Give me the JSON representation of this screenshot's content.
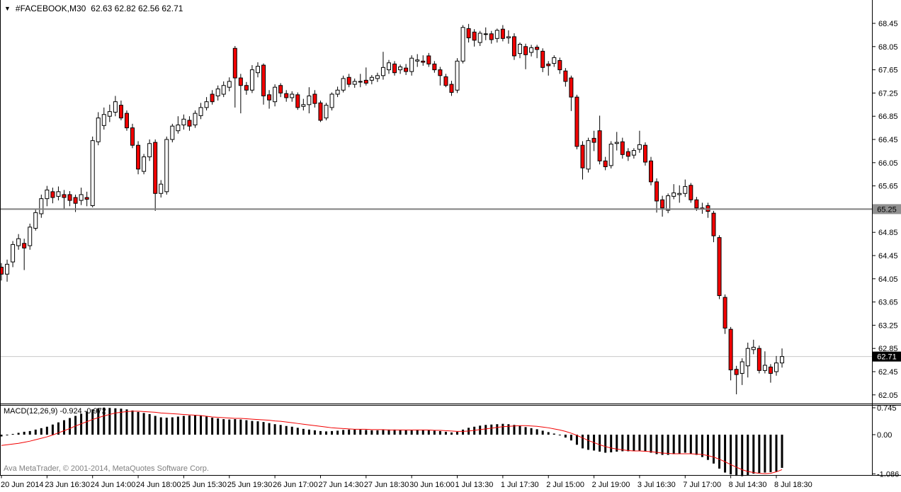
{
  "title_bar": {
    "dropdown_icon": "▼",
    "symbol": "#FACEBOOK,M30",
    "quote": "62.63 62.82 62.56 62.71"
  },
  "indicator_label": {
    "name": "MACD(12,26,9)",
    "values": "-0.924 -0.972"
  },
  "footer": {
    "copyright": "Ava MetaTrader, © 2001-2014, MetaQuotes Software Corp."
  },
  "colors": {
    "bull_fill": "#ffffff",
    "bear_fill": "#f20000",
    "outline": "#000000",
    "macd_bar": "#000000",
    "signal_line": "#f20000",
    "hline": "#808080",
    "current_price_line": "#c8c8c8",
    "hline_badge_bg": "#909090",
    "hline_badge_text": "#000000",
    "current_badge_bg": "#000000",
    "current_badge_text": "#ffffff",
    "axis_text": "#000000",
    "frame": "#000000"
  },
  "price_axis": {
    "ticks": [
      68.45,
      68.05,
      67.65,
      67.25,
      66.85,
      66.45,
      66.05,
      65.65,
      65.25,
      64.85,
      64.45,
      64.05,
      63.65,
      63.25,
      62.85,
      62.45,
      62.05
    ],
    "hline_badge": "65.25",
    "current_badge": "62.71"
  },
  "macd_axis": {
    "ticks": [
      {
        "label": "0.745",
        "value": 0.745
      },
      {
        "label": "0.00",
        "value": 0
      },
      {
        "label": "-1.086",
        "value": -1.086
      }
    ]
  },
  "time_axis": {
    "labels": [
      {
        "text": "20 Jun 2014",
        "bar": 0
      },
      {
        "text": "23 Jun 16:30",
        "bar": 8
      },
      {
        "text": "24 Jun 14:00",
        "bar": 16
      },
      {
        "text": "24 Jun 18:00",
        "bar": 24
      },
      {
        "text": "25 Jun 15:30",
        "bar": 32
      },
      {
        "text": "25 Jun 19:30",
        "bar": 40
      },
      {
        "text": "26 Jun 17:00",
        "bar": 48
      },
      {
        "text": "27 Jun 14:30",
        "bar": 56
      },
      {
        "text": "27 Jun 18:30",
        "bar": 64
      },
      {
        "text": "30 Jun 16:00",
        "bar": 72
      },
      {
        "text": "1 Jul 13:30",
        "bar": 80
      },
      {
        "text": "1 Jul 17:30",
        "bar": 88
      },
      {
        "text": "2 Jul 15:00",
        "bar": 96
      },
      {
        "text": "2 Jul 19:00",
        "bar": 104
      },
      {
        "text": "3 Jul 16:30",
        "bar": 112
      },
      {
        "text": "7 Jul 17:00",
        "bar": 120
      },
      {
        "text": "8 Jul 14:30",
        "bar": 128
      },
      {
        "text": "8 Jul 18:30",
        "bar": 136
      }
    ]
  },
  "chart_data": {
    "type": "candlestick_with_macd",
    "symbol": "#FACEBOOK",
    "timeframe": "M30",
    "title": "#FACEBOOK,M30 62.63 62.82 62.56 62.71",
    "price_range_ticks": [
      62.05,
      68.45
    ],
    "hline_level": 65.25,
    "current_price": 62.71,
    "macd_settings": "MACD(12,26,9)",
    "macd_value": -0.924,
    "macd_signal_value": -0.972,
    "macd_axis_ticks": [
      0.745,
      0.0,
      -1.086
    ],
    "candles_ohlc": [
      [
        64.25,
        64.32,
        64.02,
        64.13
      ],
      [
        64.13,
        64.38,
        64.0,
        64.3
      ],
      [
        64.34,
        64.7,
        64.25,
        64.64
      ],
      [
        64.62,
        64.82,
        64.55,
        64.74
      ],
      [
        64.66,
        64.74,
        64.2,
        64.58
      ],
      [
        64.62,
        65.0,
        64.55,
        64.94
      ],
      [
        64.92,
        65.25,
        64.88,
        65.19
      ],
      [
        65.17,
        65.5,
        65.1,
        65.43
      ],
      [
        65.43,
        65.65,
        65.3,
        65.58
      ],
      [
        65.55,
        65.62,
        65.35,
        65.45
      ],
      [
        65.47,
        65.64,
        65.4,
        65.55
      ],
      [
        65.5,
        65.58,
        65.25,
        65.45
      ],
      [
        65.5,
        65.56,
        65.3,
        65.4
      ],
      [
        65.45,
        65.5,
        65.2,
        65.35
      ],
      [
        65.4,
        65.62,
        65.32,
        65.5
      ],
      [
        65.45,
        65.55,
        65.3,
        65.42
      ],
      [
        65.31,
        66.5,
        65.28,
        66.43
      ],
      [
        66.41,
        66.92,
        66.35,
        66.82
      ],
      [
        66.69,
        67.0,
        66.62,
        66.88
      ],
      [
        66.85,
        67.05,
        66.75,
        66.93
      ],
      [
        66.92,
        67.2,
        66.85,
        67.1
      ],
      [
        67.04,
        67.12,
        66.78,
        66.82
      ],
      [
        66.9,
        66.95,
        66.6,
        66.65
      ],
      [
        66.65,
        66.72,
        66.3,
        66.35
      ],
      [
        66.35,
        66.42,
        65.85,
        65.94
      ],
      [
        65.9,
        66.2,
        65.85,
        66.15
      ],
      [
        66.15,
        66.45,
        66.08,
        66.38
      ],
      [
        66.4,
        66.45,
        65.22,
        65.52
      ],
      [
        65.52,
        65.75,
        65.45,
        65.68
      ],
      [
        65.55,
        66.5,
        65.5,
        66.45
      ],
      [
        66.45,
        66.72,
        66.4,
        66.68
      ],
      [
        66.6,
        66.85,
        66.55,
        66.7
      ],
      [
        66.7,
        66.88,
        66.62,
        66.8
      ],
      [
        66.78,
        66.85,
        66.6,
        66.68
      ],
      [
        66.7,
        66.95,
        66.65,
        66.9
      ],
      [
        66.86,
        67.08,
        66.8,
        67.0
      ],
      [
        67.0,
        67.18,
        66.95,
        67.1
      ],
      [
        67.23,
        67.3,
        67.05,
        67.1
      ],
      [
        67.2,
        67.38,
        67.12,
        67.32
      ],
      [
        67.23,
        67.45,
        67.18,
        67.38
      ],
      [
        67.35,
        67.52,
        67.28,
        67.45
      ],
      [
        68.02,
        68.06,
        67.0,
        67.51
      ],
      [
        67.51,
        67.58,
        66.9,
        67.38
      ],
      [
        67.38,
        67.44,
        67.22,
        67.3
      ],
      [
        67.3,
        67.73,
        67.25,
        67.65
      ],
      [
        67.6,
        67.78,
        67.52,
        67.71
      ],
      [
        67.73,
        67.76,
        67.05,
        67.2
      ],
      [
        67.22,
        67.3,
        66.98,
        67.13
      ],
      [
        67.1,
        67.4,
        67.02,
        67.35
      ],
      [
        67.38,
        67.42,
        67.18,
        67.25
      ],
      [
        67.24,
        67.3,
        67.1,
        67.17
      ],
      [
        67.17,
        67.28,
        67.1,
        67.23
      ],
      [
        67.22,
        67.26,
        66.96,
        67.0
      ],
      [
        67.02,
        67.15,
        66.95,
        67.05
      ],
      [
        67.05,
        67.35,
        66.9,
        67.2
      ],
      [
        67.23,
        67.3,
        67.0,
        67.07
      ],
      [
        67.08,
        67.12,
        66.75,
        66.78
      ],
      [
        66.82,
        67.08,
        66.78,
        67.04
      ],
      [
        67.0,
        67.26,
        66.95,
        67.23
      ],
      [
        67.23,
        67.36,
        67.18,
        67.3
      ],
      [
        67.3,
        67.55,
        67.26,
        67.5
      ],
      [
        67.52,
        67.58,
        67.35,
        67.4
      ],
      [
        67.4,
        67.5,
        67.34,
        67.45
      ],
      [
        67.45,
        67.58,
        67.35,
        67.44
      ],
      [
        67.47,
        67.69,
        67.38,
        67.42
      ],
      [
        67.47,
        67.56,
        67.4,
        67.52
      ],
      [
        67.5,
        67.6,
        67.44,
        67.55
      ],
      [
        67.55,
        67.96,
        67.48,
        67.69
      ],
      [
        67.65,
        67.82,
        67.58,
        67.77
      ],
      [
        67.75,
        67.8,
        67.55,
        67.6
      ],
      [
        67.65,
        67.74,
        67.58,
        67.7
      ],
      [
        67.68,
        67.75,
        67.56,
        67.62
      ],
      [
        67.62,
        67.9,
        67.55,
        67.85
      ],
      [
        67.8,
        67.92,
        67.7,
        67.82
      ],
      [
        67.8,
        67.9,
        67.72,
        67.78
      ],
      [
        67.89,
        67.94,
        67.7,
        67.75
      ],
      [
        67.75,
        67.8,
        67.6,
        67.65
      ],
      [
        67.65,
        67.7,
        67.38,
        67.55
      ],
      [
        67.53,
        67.58,
        67.35,
        67.38
      ],
      [
        67.4,
        67.46,
        67.2,
        67.26
      ],
      [
        67.3,
        67.85,
        67.25,
        67.8
      ],
      [
        67.8,
        68.42,
        67.76,
        68.38
      ],
      [
        68.36,
        68.44,
        68.12,
        68.2
      ],
      [
        68.3,
        68.35,
        68.05,
        68.16
      ],
      [
        68.12,
        68.32,
        68.06,
        68.28
      ],
      [
        68.26,
        68.38,
        68.16,
        68.27
      ],
      [
        68.27,
        68.32,
        68.1,
        68.17
      ],
      [
        68.19,
        68.36,
        68.12,
        68.33
      ],
      [
        68.35,
        68.42,
        68.14,
        68.19
      ],
      [
        68.2,
        68.33,
        68.1,
        68.22
      ],
      [
        68.22,
        68.28,
        67.82,
        67.89
      ],
      [
        67.93,
        68.12,
        67.85,
        68.09
      ],
      [
        68.05,
        68.1,
        67.66,
        67.91
      ],
      [
        67.95,
        68.08,
        67.88,
        68.03
      ],
      [
        68.04,
        68.08,
        67.85,
        68.0
      ],
      [
        67.97,
        68.02,
        67.61,
        67.69
      ],
      [
        67.75,
        67.8,
        67.55,
        67.72
      ],
      [
        67.76,
        67.9,
        67.7,
        67.86
      ],
      [
        67.81,
        67.86,
        67.58,
        67.65
      ],
      [
        67.63,
        67.68,
        67.36,
        67.45
      ],
      [
        67.51,
        67.55,
        66.94,
        67.18
      ],
      [
        67.18,
        67.22,
        66.28,
        66.33
      ],
      [
        66.35,
        66.42,
        65.76,
        65.96
      ],
      [
        65.94,
        66.48,
        65.88,
        66.43
      ],
      [
        66.47,
        66.6,
        66.25,
        66.4
      ],
      [
        66.6,
        66.86,
        66.02,
        66.08
      ],
      [
        66.08,
        66.15,
        65.92,
        65.98
      ],
      [
        66.0,
        66.42,
        65.95,
        66.37
      ],
      [
        66.38,
        66.58,
        66.26,
        66.4
      ],
      [
        66.41,
        66.48,
        66.12,
        66.19
      ],
      [
        66.24,
        66.3,
        66.08,
        66.16
      ],
      [
        66.18,
        66.3,
        66.12,
        66.26
      ],
      [
        66.28,
        66.6,
        66.22,
        66.36
      ],
      [
        66.35,
        66.4,
        66.0,
        66.06
      ],
      [
        66.08,
        66.15,
        65.66,
        65.72
      ],
      [
        65.72,
        65.78,
        65.19,
        65.39
      ],
      [
        65.41,
        65.48,
        65.12,
        65.27
      ],
      [
        65.23,
        65.52,
        65.18,
        65.48
      ],
      [
        65.47,
        65.68,
        65.42,
        65.53
      ],
      [
        65.5,
        65.66,
        65.36,
        65.52
      ],
      [
        65.52,
        65.76,
        65.46,
        65.64
      ],
      [
        65.66,
        65.7,
        65.36,
        65.41
      ],
      [
        65.41,
        65.46,
        65.22,
        65.27
      ],
      [
        65.27,
        65.36,
        65.17,
        65.25
      ],
      [
        65.31,
        65.36,
        65.1,
        65.21
      ],
      [
        65.18,
        65.22,
        64.68,
        64.79
      ],
      [
        64.76,
        64.8,
        63.7,
        63.76
      ],
      [
        63.73,
        63.78,
        63.1,
        63.2
      ],
      [
        63.18,
        63.22,
        62.3,
        62.48
      ],
      [
        62.49,
        62.55,
        62.06,
        62.4
      ],
      [
        62.42,
        62.68,
        62.22,
        62.62
      ],
      [
        62.55,
        62.95,
        62.35,
        62.85
      ],
      [
        62.83,
        63.0,
        62.75,
        62.87
      ],
      [
        62.85,
        62.9,
        62.42,
        62.47
      ],
      [
        62.47,
        62.8,
        62.42,
        62.56
      ],
      [
        62.53,
        62.58,
        62.26,
        62.42
      ],
      [
        62.45,
        62.72,
        62.38,
        62.6
      ],
      [
        62.6,
        62.85,
        62.52,
        62.71
      ]
    ],
    "macd_histogram": [
      -0.05,
      -0.02,
      0.02,
      0.05,
      0.08,
      0.1,
      0.14,
      0.18,
      0.22,
      0.28,
      0.34,
      0.4,
      0.46,
      0.52,
      0.58,
      0.64,
      0.7,
      0.73,
      0.75,
      0.74,
      0.73,
      0.72,
      0.7,
      0.67,
      0.63,
      0.6,
      0.57,
      0.52,
      0.48,
      0.47,
      0.48,
      0.5,
      0.52,
      0.53,
      0.53,
      0.52,
      0.5,
      0.47,
      0.45,
      0.43,
      0.42,
      0.43,
      0.42,
      0.4,
      0.38,
      0.37,
      0.35,
      0.32,
      0.29,
      0.27,
      0.24,
      0.22,
      0.19,
      0.16,
      0.14,
      0.12,
      0.1,
      0.09,
      0.1,
      0.11,
      0.13,
      0.14,
      0.14,
      0.14,
      0.13,
      0.12,
      0.12,
      0.13,
      0.14,
      0.14,
      0.13,
      0.12,
      0.12,
      0.13,
      0.13,
      0.12,
      0.11,
      0.1,
      0.08,
      0.06,
      0.08,
      0.14,
      0.19,
      0.22,
      0.25,
      0.27,
      0.28,
      0.29,
      0.3,
      0.29,
      0.27,
      0.24,
      0.21,
      0.18,
      0.15,
      0.11,
      0.07,
      0.03,
      -0.02,
      -0.08,
      -0.16,
      -0.28,
      -0.38,
      -0.42,
      -0.44,
      -0.47,
      -0.5,
      -0.49,
      -0.47,
      -0.46,
      -0.46,
      -0.45,
      -0.44,
      -0.46,
      -0.5,
      -0.54,
      -0.56,
      -0.56,
      -0.54,
      -0.52,
      -0.5,
      -0.52,
      -0.56,
      -0.62,
      -0.7,
      -0.8,
      -0.94,
      -1.05,
      -1.1,
      -1.14,
      -1.15,
      -1.12,
      -1.08,
      -1.06,
      -1.05,
      -1.04,
      -1.02,
      -0.92
    ],
    "macd_signal": [
      -0.3,
      -0.28,
      -0.26,
      -0.24,
      -0.21,
      -0.18,
      -0.14,
      -0.1,
      -0.06,
      -0.01,
      0.05,
      0.11,
      0.17,
      0.24,
      0.3,
      0.36,
      0.42,
      0.47,
      0.52,
      0.56,
      0.6,
      0.62,
      0.64,
      0.65,
      0.65,
      0.64,
      0.63,
      0.62,
      0.6,
      0.59,
      0.58,
      0.57,
      0.56,
      0.55,
      0.54,
      0.53,
      0.51,
      0.49,
      0.48,
      0.47,
      0.46,
      0.45,
      0.45,
      0.44,
      0.43,
      0.42,
      0.41,
      0.4,
      0.38,
      0.37,
      0.35,
      0.33,
      0.31,
      0.29,
      0.27,
      0.25,
      0.23,
      0.21,
      0.19,
      0.18,
      0.17,
      0.16,
      0.15,
      0.15,
      0.15,
      0.14,
      0.14,
      0.14,
      0.13,
      0.13,
      0.13,
      0.13,
      0.13,
      0.13,
      0.13,
      0.13,
      0.12,
      0.12,
      0.11,
      0.1,
      0.09,
      0.09,
      0.1,
      0.12,
      0.14,
      0.16,
      0.18,
      0.2,
      0.22,
      0.23,
      0.24,
      0.25,
      0.25,
      0.24,
      0.23,
      0.21,
      0.19,
      0.16,
      0.13,
      0.09,
      0.04,
      -0.02,
      -0.09,
      -0.16,
      -0.22,
      -0.28,
      -0.33,
      -0.37,
      -0.4,
      -0.42,
      -0.44,
      -0.45,
      -0.45,
      -0.46,
      -0.47,
      -0.49,
      -0.51,
      -0.52,
      -0.53,
      -0.53,
      -0.53,
      -0.53,
      -0.54,
      -0.55,
      -0.58,
      -0.62,
      -0.68,
      -0.75,
      -0.83,
      -0.9,
      -0.97,
      -1.02,
      -1.05,
      -1.07,
      -1.08,
      -1.07,
      -1.03,
      -0.97
    ]
  }
}
